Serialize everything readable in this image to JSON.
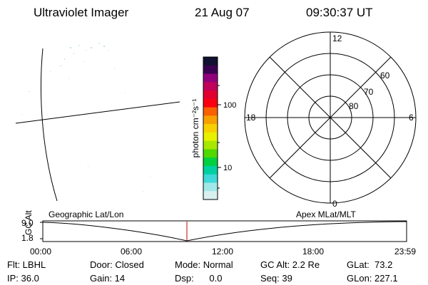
{
  "header": {
    "title": "Ultraviolet Imager",
    "date": "21 Aug 07",
    "time": "09:30:37 UT"
  },
  "colorbar": {
    "unit_label": "photon cm⁻²s⁻¹",
    "ticks": [
      "100",
      "10"
    ],
    "colors": [
      "#101030",
      "#3a0050",
      "#90007a",
      "#c0005a",
      "#e00030",
      "#f80010",
      "#f86000",
      "#f8a000",
      "#f8d000",
      "#e8f000",
      "#a8e800",
      "#50d800",
      "#00d040",
      "#00d0a0",
      "#40d8d8",
      "#a0e8e8",
      "#d8f0f0"
    ]
  },
  "polar_plot": {
    "mlt_labels": {
      "top": "12",
      "left": "18",
      "right": "6",
      "bottom": "0"
    },
    "lat_labels": [
      "80",
      "70",
      "60"
    ]
  },
  "timeline": {
    "y_axis_title": "GC Alt",
    "y_ticks": [
      "9.0",
      "1.8"
    ],
    "left_label": "Geographic Lat/Lon",
    "right_label": "Apex MLat/MLT",
    "x_ticks": [
      "00:00",
      "06:00",
      "12:00",
      "18:00",
      "23:59"
    ],
    "marker_time": "09:30:37",
    "marker_color": "#cc0000"
  },
  "status": {
    "flt": "Flt: LBHL",
    "ip": "IP: 36.0",
    "door": "Door: Closed",
    "gain": "Gain: 14",
    "mode": "Mode: Normal",
    "dsp": "Dsp:      0.0",
    "gc_alt": "GC Alt: 2.2 Re",
    "seq": "Seq: 39",
    "glat": "GLat:  73.2",
    "glon": "GLon: 227.1"
  }
}
